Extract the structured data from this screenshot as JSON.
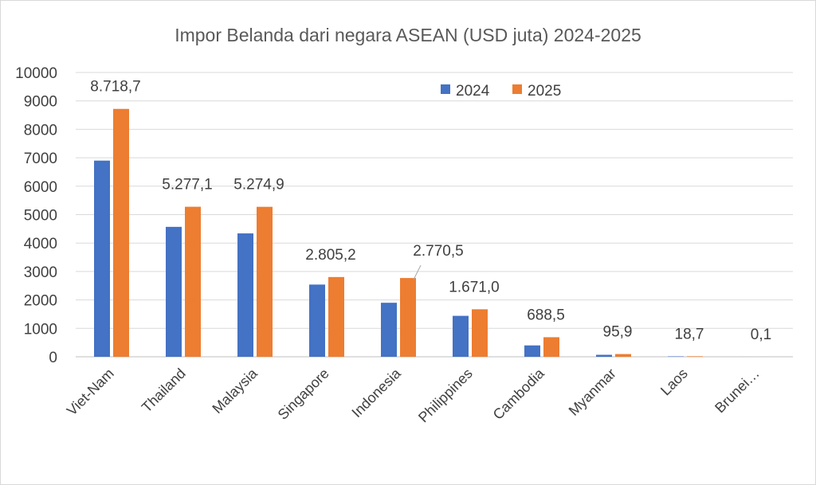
{
  "chart_data": {
    "type": "bar",
    "title": "Impor Belanda dari negara ASEAN (USD juta) 2024-2025",
    "categories": [
      "Viet-Nam",
      "Thailand",
      "Malaysia",
      "Singapore",
      "Indonesia",
      "Philippines",
      "Cambodia",
      "Myanmar",
      "Laos",
      "Brunei…"
    ],
    "series": [
      {
        "name": "2024",
        "color": "#4472C4",
        "values": [
          6900,
          4570,
          4340,
          2540,
          1900,
          1440,
          400,
          70,
          15,
          0.1
        ]
      },
      {
        "name": "2025",
        "color": "#ED7D31",
        "values": [
          8718.7,
          5277.1,
          5274.9,
          2805.2,
          2770.5,
          1671.0,
          688.5,
          95.9,
          18.7,
          0.1
        ],
        "labels": [
          "8.718,7",
          "5.277,1",
          "5.274,9",
          "2.805,2",
          "2.770,5",
          "1.671,0",
          "688,5",
          "95,9",
          "18,7",
          "0,1"
        ]
      }
    ],
    "ylim": [
      0,
      10000
    ],
    "yticks": [
      "0",
      "1000",
      "2000",
      "3000",
      "4000",
      "5000",
      "6000",
      "7000",
      "8000",
      "9000",
      "10000"
    ],
    "grid": true,
    "legend_position": "top-right"
  }
}
